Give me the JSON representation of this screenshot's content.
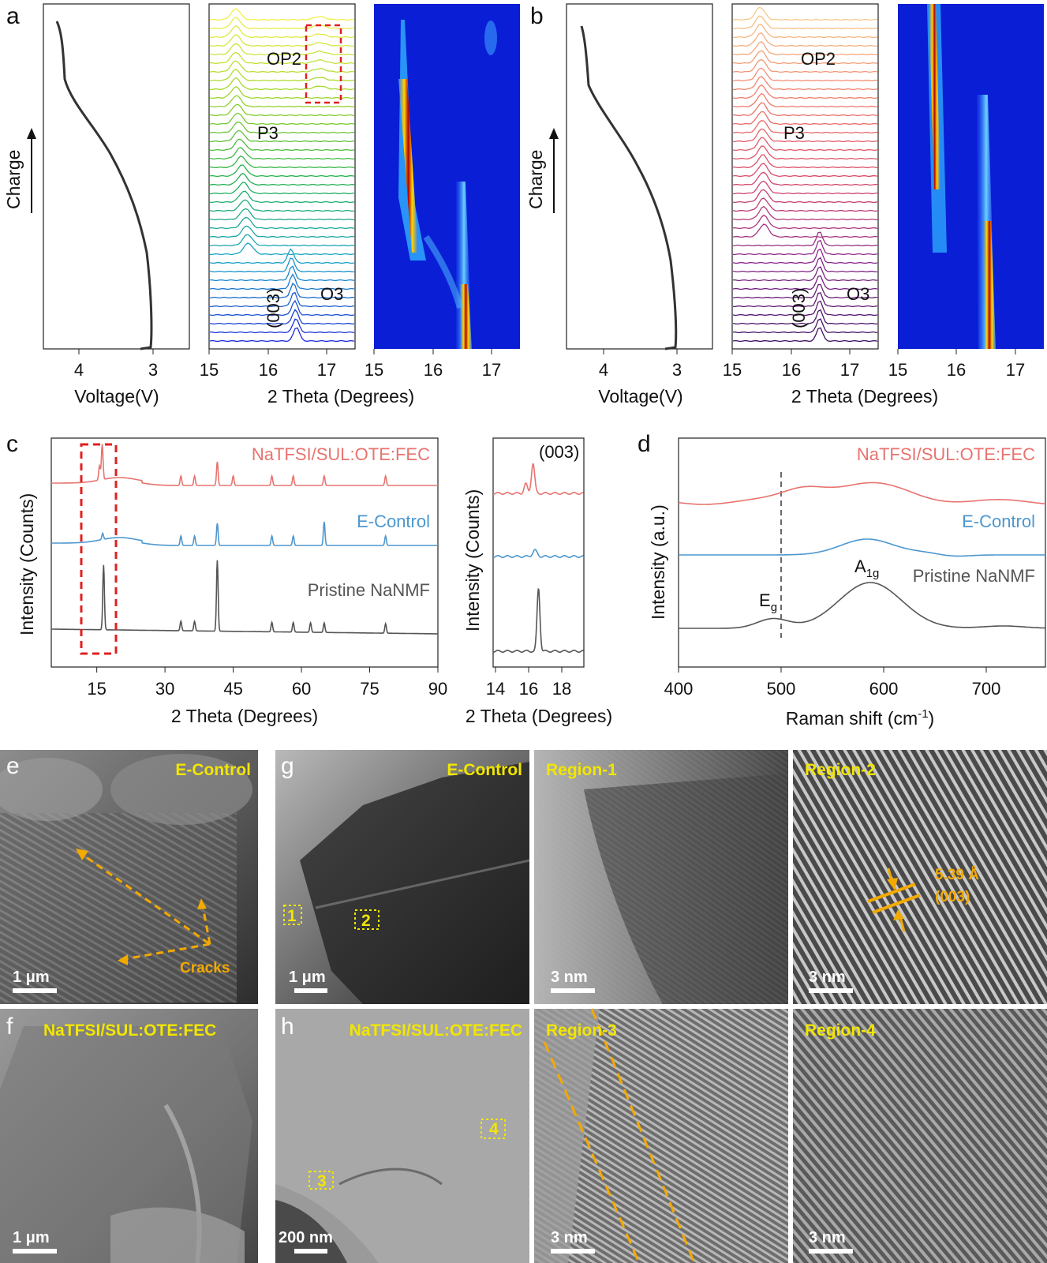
{
  "panel_labels": {
    "a": "a",
    "b": "b",
    "c": "c",
    "d": "d",
    "e": "e",
    "f": "f",
    "g": "g",
    "h": "h"
  },
  "colors": {
    "red": "#e8736f",
    "blue": "#4d97cf",
    "gray": "#555555",
    "dark": "#333333",
    "heatmap_bg": "#0a1ed6",
    "highlight_yellow": "#f2e600",
    "highlight_orange": "#f2a900",
    "box_red": "#e02020"
  },
  "panel_a": {
    "charge_label": "Charge",
    "voltage_axis": {
      "title": "Voltage(V)",
      "ticks": [
        "4",
        "3"
      ]
    },
    "xrd_axis": {
      "title": "2 Theta (Degrees)",
      "ticks": [
        "15",
        "16",
        "17"
      ]
    },
    "heatmap_axis": {
      "ticks": [
        "15",
        "16",
        "17"
      ]
    },
    "phase_labels": {
      "op2": "OP2",
      "p3": "P3",
      "o3": "O3",
      "peak": "(003)"
    }
  },
  "panel_b": {
    "charge_label": "Charge",
    "voltage_axis": {
      "title": "Voltage(V)",
      "ticks": [
        "4",
        "3"
      ]
    },
    "xrd_axis": {
      "title": "2 Theta (Degrees)",
      "ticks": [
        "15",
        "16",
        "17"
      ]
    },
    "heatmap_axis": {
      "ticks": [
        "15",
        "16",
        "17"
      ]
    },
    "phase_labels": {
      "op2": "OP2",
      "p3": "P3",
      "o3": "O3",
      "peak": "(003)"
    }
  },
  "panel_c": {
    "ylabel": "Intensity (Counts)",
    "xlabel": "2 Theta (Degrees)",
    "xticks": [
      "15",
      "30",
      "45",
      "60",
      "75",
      "90"
    ],
    "series_labels": [
      "NaTFSI/SUL:OTE:FEC",
      "E-Control",
      "Pristine NaNMF"
    ],
    "inset": {
      "ylabel": "Intensity (Counts)",
      "xlabel": "2 Theta (Degrees)",
      "xticks": [
        "14",
        "16",
        "18"
      ],
      "peak_label": "(003)"
    }
  },
  "panel_d": {
    "ylabel": "Intensity (a.u.)",
    "xlabel": "Raman shift (cm",
    "xlabel_sup": "-1",
    "xlabel_end": ")",
    "xticks": [
      "400",
      "500",
      "600",
      "700"
    ],
    "series_labels": [
      "NaTFSI/SUL:OTE:FEC",
      "E-Control",
      "Pristine NaNMF"
    ],
    "peak_eg": "E",
    "peak_eg_sub": "g",
    "peak_a1g": "A",
    "peak_a1g_sub": "1g"
  },
  "images": {
    "e": {
      "title": "E-Control",
      "scale": "1 μm",
      "annotation": "Cracks"
    },
    "f": {
      "title": "NaTFSI/SUL:OTE:FEC",
      "scale": "1 μm"
    },
    "g": {
      "title": "E-Control",
      "scale": "1 μm",
      "regions": [
        "1",
        "2"
      ]
    },
    "g_r1": {
      "title": "Region-1",
      "scale": "3 nm"
    },
    "g_r2": {
      "title": "Region-2",
      "scale": "3 nm",
      "spacing": "5.39 Å",
      "plane": "(003)"
    },
    "h": {
      "title": "NaTFSI/SUL:OTE:FEC",
      "scale": "200 nm",
      "regions": [
        "3",
        "4"
      ]
    },
    "h_r3": {
      "title": "Region-3",
      "scale": "3 nm"
    },
    "h_r4": {
      "title": "Region-4",
      "scale": "3 nm"
    }
  },
  "chart_data": [
    {
      "type": "line",
      "panel": "c",
      "xlabel": "2 Theta (Degrees)",
      "ylabel": "Intensity (Counts)",
      "xlim": [
        5,
        90
      ],
      "series": [
        {
          "name": "NaTFSI/SUL:OTE:FEC",
          "color": "#e8736f",
          "peaks_2theta": [
            16.2,
            15.6,
            33.5,
            36.5,
            41.5,
            45,
            53.5,
            58.2,
            65,
            78.5
          ]
        },
        {
          "name": "E-Control",
          "color": "#4d97cf",
          "peaks_2theta": [
            16.3,
            33.5,
            36.5,
            41.5,
            53.5,
            58.2,
            65,
            78.5
          ]
        },
        {
          "name": "Pristine NaNMF",
          "color": "#555555",
          "peaks_2theta": [
            16.5,
            33.5,
            36.5,
            41.5,
            53.5,
            58.2,
            62,
            65,
            78.5
          ]
        }
      ]
    },
    {
      "type": "line",
      "panel": "d",
      "xlabel": "Raman shift (cm-1)",
      "ylabel": "Intensity (a.u.)",
      "xlim": [
        400,
        750
      ],
      "series": [
        {
          "name": "NaTFSI/SUL:OTE:FEC",
          "color": "#e8736f",
          "peaks_cm1": [
            500,
            580
          ]
        },
        {
          "name": "E-Control",
          "color": "#4d97cf",
          "peaks_cm1": [
            580
          ]
        },
        {
          "name": "Pristine NaNMF",
          "color": "#555555",
          "peaks_cm1": [
            490,
            583
          ]
        }
      ]
    }
  ]
}
